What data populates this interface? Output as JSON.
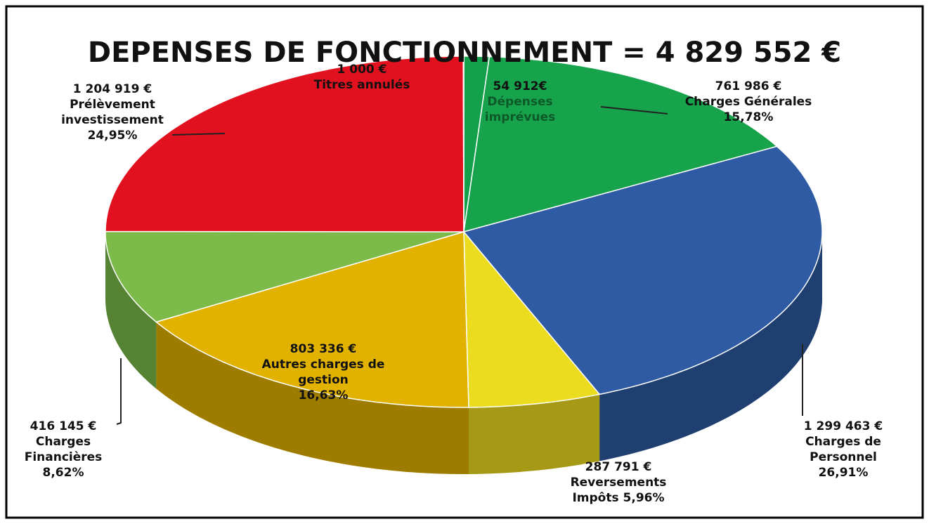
{
  "chart_data": {
    "type": "pie",
    "title": "DEPENSES DE FONCTIONNEMENT = 4 829 552 €",
    "categories": [
      "Dépenses imprévues",
      "Charges Générales",
      "Charges de Personnel",
      "Reversements Impôts",
      "Autres charges de gestion",
      "Charges Financières",
      "Prélèvement investissement",
      "Titres annulés"
    ],
    "values": [
      54912,
      761986,
      1299463,
      287791,
      803336,
      416145,
      1204919,
      1000
    ],
    "value_labels": [
      "54 912€",
      "761 986 €",
      "1 299 463 €",
      "287 791 €",
      "803 336 €",
      "416 145 €",
      "1 204 919 €",
      "1 000 €"
    ],
    "percent_labels": [
      null,
      "15,78%",
      "26,91%",
      "5,96%",
      "16,63%",
      "8,62%",
      "24,95%",
      null
    ],
    "colors": [
      "#12a04a",
      "#17a34c",
      "#2e5ba3",
      "#ecdc20",
      "#e2b200",
      "#7cba4a",
      "#e2111f",
      "#efd8ae"
    ]
  }
}
